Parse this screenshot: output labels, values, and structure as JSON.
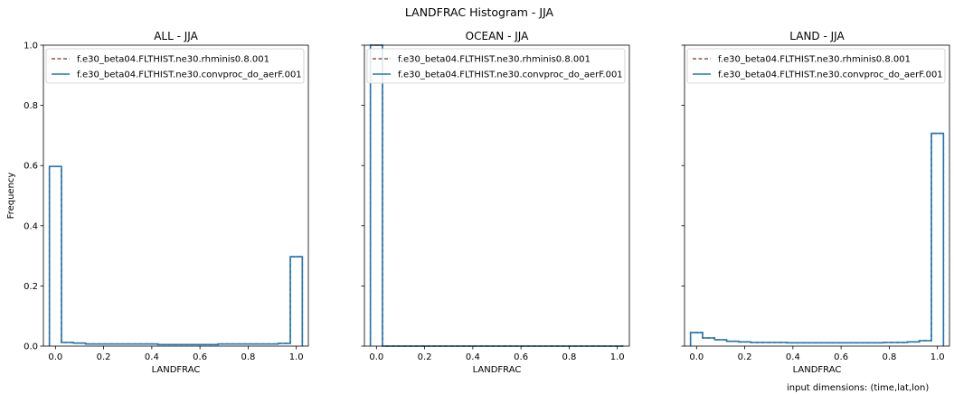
{
  "figure": {
    "title": "LANDFRAC Histogram - JJA",
    "footnote": "input dimensions: (time,lat,lon)"
  },
  "colors": {
    "rhminis_series": "#8c564b",
    "convproc_series": "#1f77b4",
    "axes": "#000000",
    "legend_border": "#cccccc"
  },
  "chart_data": [
    {
      "type": "histogram",
      "title": "ALL - JJA",
      "xlabel": "LANDFRAC",
      "ylabel": "Frequency",
      "xlim": [
        -0.05,
        1.05
      ],
      "ylim": [
        0,
        1.0
      ],
      "xticks": [
        "0.0",
        "0.2",
        "0.4",
        "0.6",
        "0.8",
        "1.0"
      ],
      "yticks": [
        "0.0",
        "0.2",
        "0.4",
        "0.6",
        "0.8",
        "1.0"
      ],
      "legend_position": "top-left",
      "grid": false,
      "bin_edges": [
        -0.025,
        0.025,
        0.075,
        0.125,
        0.175,
        0.225,
        0.275,
        0.325,
        0.375,
        0.425,
        0.475,
        0.525,
        0.575,
        0.625,
        0.675,
        0.725,
        0.775,
        0.825,
        0.875,
        0.925,
        0.975,
        1.025
      ],
      "series": [
        {
          "name": "f.e30_beta04.FLTHIST.ne30.rhminis0.8.001",
          "style": "dashed",
          "values": [
            0.597,
            0.012,
            0.01,
            0.007,
            0.007,
            0.007,
            0.007,
            0.007,
            0.007,
            0.005,
            0.005,
            0.005,
            0.005,
            0.005,
            0.007,
            0.007,
            0.007,
            0.007,
            0.007,
            0.009,
            0.297
          ]
        },
        {
          "name": "f.e30_beta04.FLTHIST.ne30.convproc_do_aerF.001",
          "style": "solid",
          "values": [
            0.597,
            0.012,
            0.01,
            0.007,
            0.007,
            0.007,
            0.007,
            0.007,
            0.007,
            0.005,
            0.005,
            0.005,
            0.005,
            0.005,
            0.007,
            0.007,
            0.007,
            0.007,
            0.007,
            0.009,
            0.297
          ]
        }
      ]
    },
    {
      "type": "histogram",
      "title": "OCEAN - JJA",
      "xlabel": "LANDFRAC",
      "ylabel": "",
      "xlim": [
        -0.05,
        1.05
      ],
      "ylim": [
        0,
        1.0
      ],
      "xticks": [
        "0.0",
        "0.2",
        "0.4",
        "0.6",
        "0.8",
        "1.0"
      ],
      "yticks": [],
      "legend_position": "top-left",
      "grid": false,
      "bin_edges": [
        -0.025,
        0.025,
        0.075,
        0.125,
        0.175,
        0.225,
        0.275,
        0.325,
        0.375,
        0.425,
        0.475,
        0.525,
        0.575,
        0.625,
        0.675,
        0.725,
        0.775,
        0.825,
        0.875,
        0.925,
        0.975,
        1.025
      ],
      "series": [
        {
          "name": "f.e30_beta04.FLTHIST.ne30.rhminis0.8.001",
          "style": "dashed",
          "values": [
            1.0,
            0,
            0,
            0,
            0,
            0,
            0,
            0,
            0,
            0,
            0,
            0,
            0,
            0,
            0,
            0,
            0,
            0,
            0,
            0,
            0
          ]
        },
        {
          "name": "f.e30_beta04.FLTHIST.ne30.convproc_do_aerF.001",
          "style": "solid",
          "values": [
            1.0,
            0,
            0,
            0,
            0,
            0,
            0,
            0,
            0,
            0,
            0,
            0,
            0,
            0,
            0,
            0,
            0,
            0,
            0,
            0,
            0
          ]
        }
      ]
    },
    {
      "type": "histogram",
      "title": "LAND - JJA",
      "xlabel": "LANDFRAC",
      "ylabel": "",
      "xlim": [
        -0.05,
        1.05
      ],
      "ylim": [
        0,
        1.0
      ],
      "xticks": [
        "0.0",
        "0.2",
        "0.4",
        "0.6",
        "0.8",
        "1.0"
      ],
      "yticks": [],
      "legend_position": "top-left",
      "grid": false,
      "bin_edges": [
        -0.025,
        0.025,
        0.075,
        0.125,
        0.175,
        0.225,
        0.275,
        0.325,
        0.375,
        0.425,
        0.475,
        0.525,
        0.575,
        0.625,
        0.675,
        0.725,
        0.775,
        0.825,
        0.875,
        0.925,
        0.975,
        1.025
      ],
      "series": [
        {
          "name": "f.e30_beta04.FLTHIST.ne30.rhminis0.8.001",
          "style": "dashed",
          "values": [
            0.045,
            0.027,
            0.021,
            0.016,
            0.014,
            0.012,
            0.012,
            0.012,
            0.011,
            0.011,
            0.011,
            0.011,
            0.011,
            0.011,
            0.011,
            0.011,
            0.012,
            0.012,
            0.014,
            0.018,
            0.707
          ]
        },
        {
          "name": "f.e30_beta04.FLTHIST.ne30.convproc_do_aerF.001",
          "style": "solid",
          "values": [
            0.045,
            0.027,
            0.021,
            0.016,
            0.014,
            0.012,
            0.012,
            0.012,
            0.011,
            0.011,
            0.011,
            0.011,
            0.011,
            0.011,
            0.011,
            0.011,
            0.012,
            0.012,
            0.014,
            0.018,
            0.707
          ]
        }
      ]
    }
  ]
}
